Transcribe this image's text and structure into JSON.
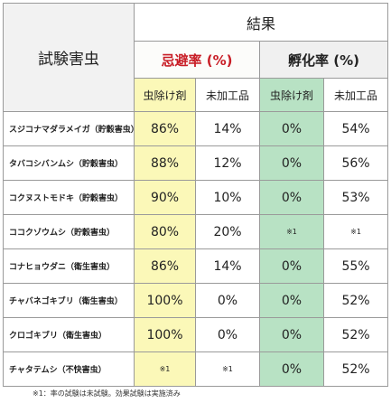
{
  "header": {
    "result": "結果",
    "test_pest": "試験害虫",
    "repellency": "忌避率 (%)",
    "hatch": "孵化率 (%)",
    "insect_col": "虫除け剤",
    "untreated_col": "未加工品"
  },
  "rows": [
    {
      "name": "スジコナマダラメイガ（貯穀害虫）",
      "rep_agent": "86%",
      "rep_untreated": "14%",
      "hatch_agent": "0%",
      "hatch_untreated": "54%"
    },
    {
      "name": "タバコシバンムシ（貯穀害虫）",
      "rep_agent": "88%",
      "rep_untreated": "12%",
      "hatch_agent": "0%",
      "hatch_untreated": "56%"
    },
    {
      "name": "コクヌストモドキ（貯穀害虫）",
      "rep_agent": "90%",
      "rep_untreated": "10%",
      "hatch_agent": "0%",
      "hatch_untreated": "53%"
    },
    {
      "name": "ココクゾウムシ（貯穀害虫）",
      "rep_agent": "80%",
      "rep_untreated": "20%",
      "hatch_agent": "※1",
      "hatch_untreated": "※1"
    },
    {
      "name": "コナヒョウダニ（衛生害虫）",
      "rep_agent": "86%",
      "rep_untreated": "14%",
      "hatch_agent": "0%",
      "hatch_untreated": "55%"
    },
    {
      "name": "チャバネゴキブリ（衛生害虫）",
      "rep_agent": "100%",
      "rep_untreated": "0%",
      "hatch_agent": "0%",
      "hatch_untreated": "52%"
    },
    {
      "name": "クロゴキブリ（衛生害虫）",
      "rep_agent": "100%",
      "rep_untreated": "0%",
      "hatch_agent": "0%",
      "hatch_untreated": "52%"
    },
    {
      "name": "チャタテムシ（不快害虫）",
      "rep_agent": "※1",
      "rep_untreated": "※1",
      "hatch_agent": "0%",
      "hatch_untreated": "52%"
    }
  ],
  "footnote": "※1：率の試験は未試験。効果試験は実施済み"
}
